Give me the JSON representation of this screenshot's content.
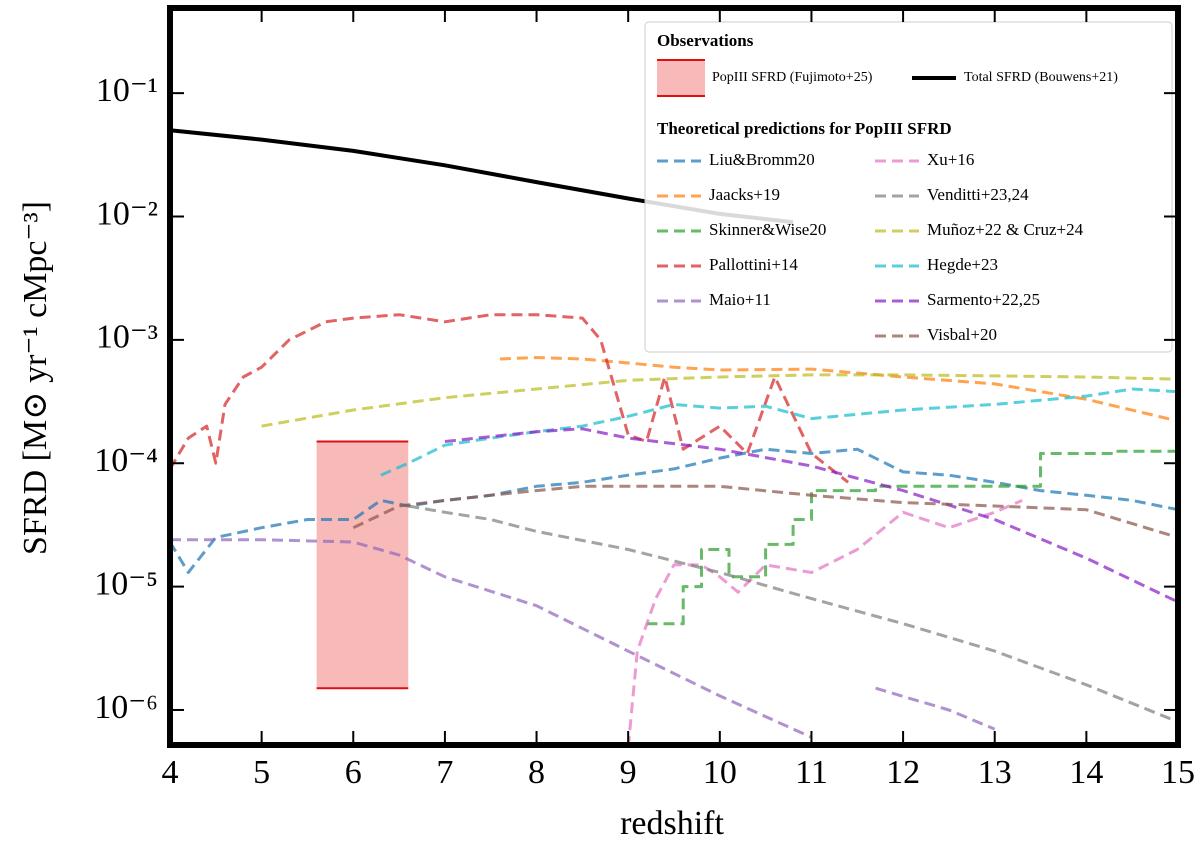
{
  "chart_data": {
    "type": "line",
    "xlabel": "redshift",
    "ylabel": "SFRD [M⊙ yr⁻¹ cMpc⁻³]",
    "xlim": [
      4,
      15
    ],
    "ylim": [
      5.2e-07,
      0.49
    ],
    "yscale": "log",
    "xticks": [
      4,
      5,
      6,
      7,
      8,
      9,
      10,
      11,
      12,
      13,
      14,
      15
    ],
    "yticks": [
      {
        "value": 1e-06,
        "label": "10⁻⁶"
      },
      {
        "value": 1e-05,
        "label": "10⁻⁵"
      },
      {
        "value": 0.0001,
        "label": "10⁻⁴"
      },
      {
        "value": 0.001,
        "label": "10⁻³"
      },
      {
        "value": 0.01,
        "label": "10⁻²"
      },
      {
        "value": 0.1,
        "label": "10⁻¹"
      }
    ],
    "legend": "upper right",
    "legend_titles": [
      "Observations",
      "Theoretical predictions for PopIII SFRD"
    ],
    "region": {
      "name": "PopIII SFRD (Fujimoto+25)",
      "color": "#f4a3a0",
      "edgecolor": "#e01010",
      "x": [
        5.6,
        6.6
      ],
      "y": [
        1.5e-06,
        0.00015
      ]
    },
    "series": [
      {
        "name": "Total SFRD (Bouwens+21)",
        "color": "#000000",
        "linestyle": "solid",
        "x": [
          4,
          5,
          6,
          7,
          8,
          9,
          10,
          10.8
        ],
        "values": [
          0.05,
          0.042,
          0.034,
          0.026,
          0.019,
          0.014,
          0.0105,
          0.009
        ]
      },
      {
        "name": "Liu&Bromm20",
        "color": "#1f77b4",
        "linestyle": "dashed",
        "x": [
          4,
          4.2,
          4.5,
          5,
          5.5,
          6,
          6.3,
          6.6,
          7,
          7.5,
          8,
          8.5,
          9,
          9.5,
          10,
          10.5,
          11,
          11.5,
          12,
          12.5,
          13,
          13.5,
          14,
          14.5,
          15
        ],
        "values": [
          2.3e-05,
          1.3e-05,
          2.5e-05,
          3e-05,
          3.5e-05,
          3.5e-05,
          5e-05,
          4.5e-05,
          5e-05,
          5.5e-05,
          6.5e-05,
          7e-05,
          8e-05,
          9e-05,
          0.00011,
          0.00013,
          0.00012,
          0.00013,
          8.5e-05,
          8e-05,
          7e-05,
          6e-05,
          5.5e-05,
          5e-05,
          4.2e-05
        ]
      },
      {
        "name": "Jaacks+19",
        "color": "#ff7f0e",
        "linestyle": "dashed",
        "x": [
          7.6,
          8,
          8.5,
          9,
          9.5,
          10,
          11,
          12,
          13,
          14,
          15
        ],
        "values": [
          0.0007,
          0.00072,
          0.0007,
          0.00065,
          0.0006,
          0.00057,
          0.00058,
          0.0005,
          0.00044,
          0.00033,
          0.00022
        ]
      },
      {
        "name": "Skinner&Wise20",
        "color": "#2ca02c",
        "linestyle": "dashed",
        "x": [
          9.2,
          9.6,
          9.6,
          9.8,
          9.8,
          10.1,
          10.1,
          10.5,
          10.5,
          10.8,
          10.8,
          11,
          11,
          11.7,
          11.7,
          13.5,
          13.5,
          14.3,
          14.3,
          15
        ],
        "values": [
          5e-06,
          5e-06,
          1e-05,
          1e-05,
          2e-05,
          2e-05,
          1.2e-05,
          1.2e-05,
          2.2e-05,
          2.2e-05,
          3.5e-05,
          3.5e-05,
          6e-05,
          6e-05,
          6.5e-05,
          6.5e-05,
          0.00012,
          0.00012,
          0.000125,
          0.000125
        ]
      },
      {
        "name": "Pallottini+14",
        "color": "#d62728",
        "linestyle": "dashed",
        "x": [
          4,
          4.2,
          4.4,
          4.5,
          4.6,
          4.8,
          5,
          5.3,
          5.7,
          6,
          6.5,
          7,
          7.5,
          8,
          8.5,
          8.7,
          9,
          9.2,
          9.4,
          9.6,
          10,
          10.3,
          10.6,
          11,
          11.4
        ],
        "values": [
          9e-05,
          0.00016,
          0.0002,
          0.0001,
          0.0003,
          0.0005,
          0.0006,
          0.001,
          0.0014,
          0.0015,
          0.0016,
          0.0014,
          0.0016,
          0.0016,
          0.0015,
          0.001,
          0.00017,
          0.00015,
          0.0005,
          0.00013,
          0.0002,
          0.00012,
          0.0005,
          0.00012,
          7e-05
        ]
      },
      {
        "name": "Maio+11",
        "color": "#9467bd",
        "linestyle": "dashed",
        "x": [
          4,
          5,
          6,
          6.5,
          7,
          8,
          9,
          10,
          11,
          11.3,
          11.7,
          12.5,
          13
        ],
        "values": [
          2.4e-05,
          2.4e-05,
          2.3e-05,
          1.8e-05,
          1.2e-05,
          7e-06,
          3e-06,
          1.3e-06,
          6e-07,
          null,
          1.5e-06,
          1e-06,
          7e-07
        ]
      },
      {
        "name": "Xu+16",
        "color": "#e377c2",
        "linestyle": "dashed",
        "x": [
          9,
          9.1,
          9.3,
          9.5,
          9.8,
          10,
          10.2,
          10.5,
          11,
          11.5,
          12,
          12.5,
          13,
          13.3
        ],
        "values": [
          5e-07,
          3e-06,
          8e-06,
          1.5e-05,
          1.5e-05,
          1.2e-05,
          9e-06,
          1.5e-05,
          1.3e-05,
          2e-05,
          4e-05,
          3e-05,
          4e-05,
          5e-05
        ]
      },
      {
        "name": "Venditti+23,24",
        "color": "#7f7f7f",
        "linestyle": "dashed",
        "x": [
          6.6,
          7,
          7.5,
          8,
          9,
          10,
          11,
          12,
          13,
          14,
          15
        ],
        "values": [
          4.5e-05,
          4e-05,
          3.5e-05,
          2.8e-05,
          2e-05,
          1.3e-05,
          8e-06,
          5e-06,
          3e-06,
          1.6e-06,
          8e-07
        ]
      },
      {
        "name": "Muñoz+22 & Cruz+24",
        "color": "#bcbd22",
        "linestyle": "dashed",
        "x": [
          5,
          6,
          7,
          8,
          9,
          10,
          11,
          12,
          13,
          14,
          15
        ],
        "values": [
          0.0002,
          0.00027,
          0.00034,
          0.0004,
          0.00047,
          0.0005,
          0.00052,
          0.00052,
          0.00051,
          0.0005,
          0.00048
        ]
      },
      {
        "name": "Hegde+23",
        "color": "#17becf",
        "linestyle": "dashed",
        "x": [
          6.3,
          6.6,
          7,
          7.5,
          8,
          8.5,
          9,
          9.5,
          10,
          10.5,
          11,
          12,
          13,
          14,
          14.5,
          15
        ],
        "values": [
          8e-05,
          0.0001,
          0.00014,
          0.00016,
          0.00018,
          0.0002,
          0.00024,
          0.0003,
          0.00028,
          0.00029,
          0.00023,
          0.00027,
          0.0003,
          0.00035,
          0.0004,
          0.00038
        ]
      },
      {
        "name": "Sarmento+22,25",
        "color": "#8a1fc6",
        "linestyle": "dashed",
        "x": [
          7,
          8,
          8.5,
          9,
          10,
          11,
          12,
          13,
          14,
          15
        ],
        "values": [
          0.00015,
          0.00018,
          0.00019,
          0.00016,
          0.00013,
          9.5e-05,
          6e-05,
          3.5e-05,
          1.7e-05,
          7.5e-06
        ]
      },
      {
        "name": "Visbal+20",
        "color": "#8c564b",
        "linestyle": "dashed",
        "x": [
          6,
          6.5,
          7,
          7.5,
          8,
          8.5,
          9,
          10,
          11,
          12,
          13,
          14,
          15
        ],
        "values": [
          3e-05,
          4.5e-05,
          5e-05,
          5.5e-05,
          6e-05,
          6.5e-05,
          6.5e-05,
          6.5e-05,
          5.5e-05,
          4.8e-05,
          4.5e-05,
          4.2e-05,
          2.5e-05
        ]
      }
    ]
  }
}
